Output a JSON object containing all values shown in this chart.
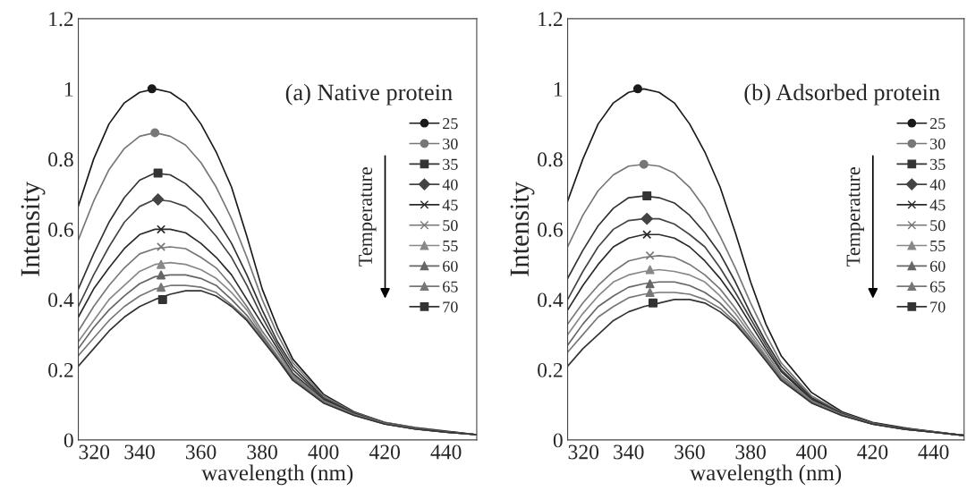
{
  "chart_data": [
    {
      "type": "line",
      "title": "(a) Native protein",
      "xlabel": "wavelength (nm)",
      "ylabel": "Intensity",
      "legend_title": "Temperature",
      "legend": "right",
      "grid": false,
      "xlim": [
        320,
        450
      ],
      "xticks": [
        320,
        340,
        360,
        380,
        400,
        420,
        440
      ],
      "ylim": [
        0,
        1.2
      ],
      "yticks": [
        0,
        0.2,
        0.4,
        0.6,
        0.8,
        1,
        1.2
      ],
      "x": [
        320,
        325,
        330,
        335,
        340,
        345,
        350,
        355,
        360,
        365,
        370,
        375,
        380,
        385,
        390,
        400,
        410,
        420,
        430,
        440,
        450
      ],
      "series": [
        {
          "name": "25",
          "color": "#1a1a1a",
          "values": [
            0.666,
            0.8,
            0.9,
            0.96,
            0.99,
            1.0,
            0.99,
            0.96,
            0.9,
            0.82,
            0.72,
            0.58,
            0.43,
            0.32,
            0.23,
            0.13,
            0.08,
            0.05,
            0.035,
            0.025,
            0.015
          ]
        },
        {
          "name": "30",
          "color": "#777777",
          "values": [
            0.57,
            0.68,
            0.77,
            0.83,
            0.865,
            0.875,
            0.865,
            0.84,
            0.79,
            0.72,
            0.63,
            0.52,
            0.4,
            0.3,
            0.22,
            0.125,
            0.078,
            0.05,
            0.034,
            0.024,
            0.015
          ]
        },
        {
          "name": "35",
          "color": "#333333",
          "values": [
            0.43,
            0.53,
            0.62,
            0.69,
            0.74,
            0.76,
            0.755,
            0.73,
            0.69,
            0.63,
            0.56,
            0.47,
            0.37,
            0.28,
            0.21,
            0.12,
            0.076,
            0.048,
            0.033,
            0.023,
            0.015
          ]
        },
        {
          "name": "40",
          "color": "#444444",
          "values": [
            0.38,
            0.47,
            0.55,
            0.62,
            0.665,
            0.685,
            0.68,
            0.665,
            0.63,
            0.58,
            0.52,
            0.44,
            0.35,
            0.27,
            0.2,
            0.118,
            0.075,
            0.048,
            0.033,
            0.023,
            0.015
          ]
        },
        {
          "name": "45",
          "color": "#2a2a2a",
          "values": [
            0.35,
            0.43,
            0.49,
            0.545,
            0.585,
            0.6,
            0.6,
            0.59,
            0.56,
            0.52,
            0.47,
            0.4,
            0.33,
            0.26,
            0.19,
            0.115,
            0.074,
            0.047,
            0.032,
            0.023,
            0.015
          ]
        },
        {
          "name": "50",
          "color": "#777777",
          "values": [
            0.31,
            0.38,
            0.44,
            0.49,
            0.53,
            0.545,
            0.55,
            0.545,
            0.52,
            0.49,
            0.44,
            0.38,
            0.31,
            0.25,
            0.185,
            0.112,
            0.073,
            0.047,
            0.032,
            0.022,
            0.015
          ]
        },
        {
          "name": "55",
          "color": "#888888",
          "values": [
            0.28,
            0.34,
            0.4,
            0.44,
            0.48,
            0.5,
            0.505,
            0.5,
            0.485,
            0.46,
            0.42,
            0.37,
            0.3,
            0.24,
            0.18,
            0.11,
            0.072,
            0.046,
            0.032,
            0.022,
            0.015
          ]
        },
        {
          "name": "60",
          "color": "#666666",
          "values": [
            0.26,
            0.32,
            0.37,
            0.41,
            0.445,
            0.465,
            0.47,
            0.47,
            0.46,
            0.44,
            0.4,
            0.355,
            0.295,
            0.235,
            0.175,
            0.108,
            0.071,
            0.046,
            0.031,
            0.022,
            0.015
          ]
        },
        {
          "name": "65",
          "color": "#777777",
          "values": [
            0.24,
            0.29,
            0.34,
            0.38,
            0.41,
            0.43,
            0.44,
            0.44,
            0.435,
            0.42,
            0.385,
            0.345,
            0.29,
            0.23,
            0.17,
            0.106,
            0.07,
            0.046,
            0.031,
            0.022,
            0.015
          ]
        },
        {
          "name": "70",
          "color": "#333333",
          "values": [
            0.21,
            0.26,
            0.31,
            0.35,
            0.38,
            0.4,
            0.415,
            0.425,
            0.425,
            0.41,
            0.38,
            0.34,
            0.285,
            0.23,
            0.17,
            0.105,
            0.07,
            0.045,
            0.031,
            0.022,
            0.015
          ]
        },
        {
          "name": "25",
          "type": "scatter",
          "marker": "circle",
          "color": "#1a1a1a",
          "x": [
            344
          ],
          "values": [
            1.0
          ]
        },
        {
          "name": "30",
          "type": "scatter",
          "marker": "circle",
          "color": "#777777",
          "x": [
            345
          ],
          "values": [
            0.875
          ]
        },
        {
          "name": "35",
          "type": "scatter",
          "marker": "square",
          "color": "#333333",
          "x": [
            346
          ],
          "values": [
            0.76
          ]
        },
        {
          "name": "40",
          "type": "scatter",
          "marker": "diamond",
          "color": "#444444",
          "x": [
            346
          ],
          "values": [
            0.685
          ]
        },
        {
          "name": "45",
          "type": "scatter",
          "marker": "cross",
          "color": "#2a2a2a",
          "x": [
            347
          ],
          "values": [
            0.6
          ]
        },
        {
          "name": "50",
          "type": "scatter",
          "marker": "cross",
          "color": "#777777",
          "x": [
            347
          ],
          "values": [
            0.55
          ]
        },
        {
          "name": "55",
          "type": "scatter",
          "marker": "triangle",
          "color": "#888888",
          "x": [
            347
          ],
          "values": [
            0.5
          ]
        },
        {
          "name": "60",
          "type": "scatter",
          "marker": "triangle",
          "color": "#666666",
          "x": [
            347
          ],
          "values": [
            0.47
          ]
        },
        {
          "name": "65",
          "type": "scatter",
          "marker": "triangle",
          "color": "#777777",
          "x": [
            347
          ],
          "values": [
            0.435
          ]
        },
        {
          "name": "70",
          "type": "scatter",
          "marker": "square",
          "color": "#333333",
          "x": [
            347.5
          ],
          "values": [
            0.4
          ]
        }
      ]
    },
    {
      "type": "line",
      "title": "(b) Adsorbed protein",
      "xlabel": "wavelength (nm)",
      "ylabel": "Intensity",
      "legend_title": "Temperature",
      "legend": "right",
      "grid": false,
      "xlim": [
        320,
        450
      ],
      "xticks": [
        320,
        340,
        360,
        380,
        400,
        420,
        440
      ],
      "ylim": [
        0,
        1.2
      ],
      "yticks": [
        0,
        0.2,
        0.4,
        0.6,
        0.8,
        1,
        1.2
      ],
      "x": [
        320,
        325,
        330,
        335,
        340,
        345,
        350,
        355,
        360,
        365,
        370,
        375,
        380,
        385,
        390,
        400,
        410,
        420,
        430,
        440,
        450
      ],
      "series": [
        {
          "name": "25",
          "color": "#1a1a1a",
          "values": [
            0.68,
            0.8,
            0.9,
            0.96,
            0.99,
            1.0,
            0.99,
            0.96,
            0.9,
            0.82,
            0.72,
            0.59,
            0.45,
            0.33,
            0.24,
            0.135,
            0.08,
            0.05,
            0.035,
            0.024,
            0.013
          ]
        },
        {
          "name": "30",
          "color": "#777777",
          "values": [
            0.55,
            0.64,
            0.71,
            0.755,
            0.78,
            0.785,
            0.78,
            0.76,
            0.72,
            0.66,
            0.58,
            0.49,
            0.39,
            0.3,
            0.22,
            0.125,
            0.077,
            0.048,
            0.033,
            0.023,
            0.013
          ]
        },
        {
          "name": "35",
          "color": "#333333",
          "values": [
            0.46,
            0.54,
            0.61,
            0.66,
            0.69,
            0.695,
            0.69,
            0.675,
            0.64,
            0.59,
            0.53,
            0.45,
            0.36,
            0.28,
            0.21,
            0.12,
            0.075,
            0.047,
            0.033,
            0.023,
            0.013
          ]
        },
        {
          "name": "40",
          "color": "#444444",
          "values": [
            0.4,
            0.48,
            0.55,
            0.6,
            0.625,
            0.63,
            0.63,
            0.615,
            0.585,
            0.55,
            0.49,
            0.42,
            0.345,
            0.27,
            0.2,
            0.117,
            0.074,
            0.047,
            0.032,
            0.022,
            0.013
          ]
        },
        {
          "name": "45",
          "color": "#2a2a2a",
          "values": [
            0.37,
            0.44,
            0.5,
            0.55,
            0.575,
            0.585,
            0.585,
            0.575,
            0.55,
            0.51,
            0.46,
            0.4,
            0.33,
            0.26,
            0.195,
            0.115,
            0.073,
            0.046,
            0.032,
            0.022,
            0.013
          ]
        },
        {
          "name": "50",
          "color": "#777777",
          "values": [
            0.33,
            0.39,
            0.44,
            0.48,
            0.51,
            0.52,
            0.525,
            0.52,
            0.5,
            0.47,
            0.43,
            0.375,
            0.31,
            0.25,
            0.185,
            0.112,
            0.072,
            0.046,
            0.032,
            0.022,
            0.013
          ]
        },
        {
          "name": "55",
          "color": "#888888",
          "values": [
            0.3,
            0.36,
            0.41,
            0.45,
            0.47,
            0.48,
            0.485,
            0.48,
            0.47,
            0.45,
            0.41,
            0.36,
            0.3,
            0.24,
            0.18,
            0.11,
            0.071,
            0.045,
            0.031,
            0.022,
            0.013
          ]
        },
        {
          "name": "60",
          "color": "#666666",
          "values": [
            0.27,
            0.33,
            0.38,
            0.41,
            0.435,
            0.445,
            0.45,
            0.45,
            0.44,
            0.42,
            0.39,
            0.345,
            0.29,
            0.235,
            0.175,
            0.108,
            0.07,
            0.045,
            0.031,
            0.022,
            0.013
          ]
        },
        {
          "name": "65",
          "color": "#777777",
          "values": [
            0.25,
            0.3,
            0.35,
            0.38,
            0.405,
            0.415,
            0.42,
            0.42,
            0.415,
            0.4,
            0.375,
            0.335,
            0.285,
            0.23,
            0.17,
            0.106,
            0.07,
            0.045,
            0.031,
            0.022,
            0.013
          ]
        },
        {
          "name": "70",
          "color": "#333333",
          "values": [
            0.21,
            0.26,
            0.3,
            0.34,
            0.365,
            0.38,
            0.39,
            0.4,
            0.4,
            0.39,
            0.365,
            0.33,
            0.28,
            0.225,
            0.17,
            0.105,
            0.069,
            0.045,
            0.031,
            0.022,
            0.013
          ]
        },
        {
          "name": "25",
          "type": "scatter",
          "marker": "circle",
          "color": "#1a1a1a",
          "x": [
            343
          ],
          "values": [
            1.0
          ]
        },
        {
          "name": "30",
          "type": "scatter",
          "marker": "circle",
          "color": "#777777",
          "x": [
            345
          ],
          "values": [
            0.785
          ]
        },
        {
          "name": "35",
          "type": "scatter",
          "marker": "square",
          "color": "#333333",
          "x": [
            346
          ],
          "values": [
            0.695
          ]
        },
        {
          "name": "40",
          "type": "scatter",
          "marker": "diamond",
          "color": "#444444",
          "x": [
            346
          ],
          "values": [
            0.63
          ]
        },
        {
          "name": "45",
          "type": "scatter",
          "marker": "cross",
          "color": "#2a2a2a",
          "x": [
            346
          ],
          "values": [
            0.585
          ]
        },
        {
          "name": "50",
          "type": "scatter",
          "marker": "cross",
          "color": "#777777",
          "x": [
            347
          ],
          "values": [
            0.525
          ]
        },
        {
          "name": "55",
          "type": "scatter",
          "marker": "triangle",
          "color": "#888888",
          "x": [
            347
          ],
          "values": [
            0.485
          ]
        },
        {
          "name": "60",
          "type": "scatter",
          "marker": "triangle",
          "color": "#666666",
          "x": [
            347
          ],
          "values": [
            0.445
          ]
        },
        {
          "name": "65",
          "type": "scatter",
          "marker": "triangle",
          "color": "#777777",
          "x": [
            347
          ],
          "values": [
            0.42
          ]
        },
        {
          "name": "70",
          "type": "scatter",
          "marker": "square",
          "color": "#333333",
          "x": [
            348
          ],
          "values": [
            0.39
          ]
        }
      ]
    }
  ]
}
